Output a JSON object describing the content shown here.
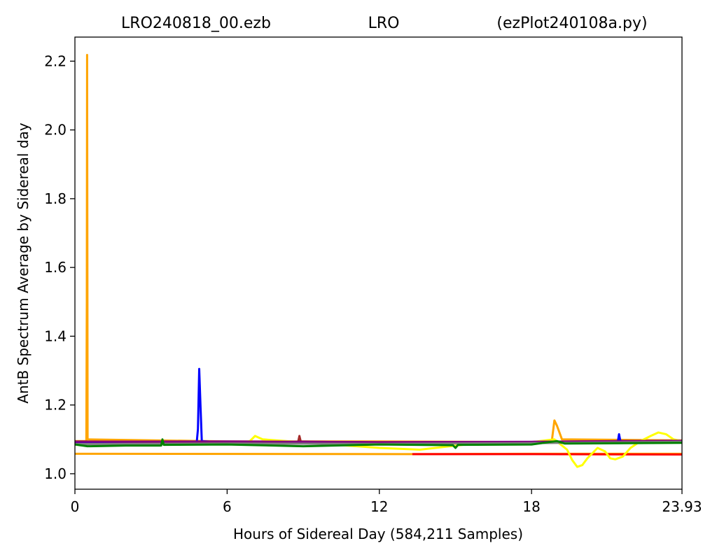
{
  "chart_data": {
    "type": "line",
    "title_parts": [
      "LRO240818_00.ezb",
      "LRO",
      "(ezPlot240108a.py)"
    ],
    "xlabel": "Hours of Sidereal Day  (584,211 Samples)",
    "ylabel": "AntB Spectrum Average by Sidereal day",
    "xlim": [
      0,
      23.93
    ],
    "ylim": [
      0.955,
      2.27
    ],
    "xticks": [
      0,
      6,
      12,
      18,
      23.93
    ],
    "xtick_labels": [
      "0",
      "6",
      "12",
      "18",
      "23.93"
    ],
    "yticks": [
      1.0,
      1.2,
      1.4,
      1.6,
      1.8,
      2.0,
      2.2
    ],
    "ytick_labels": [
      "1.0",
      "1.2",
      "1.4",
      "1.6",
      "1.8",
      "2.0",
      "2.2"
    ],
    "grid": false,
    "series": [
      {
        "color": "#ffa500",
        "points": [
          [
            0,
            1.058
          ],
          [
            13.5,
            1.057
          ],
          [
            18,
            1.058
          ],
          [
            23.93,
            1.058
          ]
        ]
      },
      {
        "color": "#ff0000",
        "points": [
          [
            13.3,
            1.057
          ],
          [
            18,
            1.057
          ],
          [
            23.93,
            1.056
          ]
        ]
      },
      {
        "color": "#ffa500",
        "points": [
          [
            0,
            1.095
          ],
          [
            0.45,
            1.095
          ],
          [
            0.47,
            1.5
          ],
          [
            0.48,
            2.218
          ],
          [
            0.49,
            1.6
          ],
          [
            0.5,
            1.1
          ],
          [
            6,
            1.094
          ],
          [
            12,
            1.094
          ],
          [
            18,
            1.092
          ],
          [
            18.8,
            1.095
          ],
          [
            18.9,
            1.155
          ],
          [
            19.0,
            1.14
          ],
          [
            19.2,
            1.1
          ],
          [
            23.93,
            1.097
          ]
        ]
      },
      {
        "color": "#ffff00",
        "points": [
          [
            0,
            1.09
          ],
          [
            6,
            1.092
          ],
          [
            6.5,
            1.09
          ],
          [
            6.9,
            1.095
          ],
          [
            7.1,
            1.11
          ],
          [
            7.4,
            1.1
          ],
          [
            12,
            1.075
          ],
          [
            13.6,
            1.07
          ],
          [
            16,
            1.09
          ],
          [
            18,
            1.092
          ],
          [
            18.9,
            1.1
          ],
          [
            19.1,
            1.088
          ],
          [
            19.4,
            1.07
          ],
          [
            19.6,
            1.04
          ],
          [
            19.8,
            1.02
          ],
          [
            20,
            1.025
          ],
          [
            20.2,
            1.045
          ],
          [
            20.6,
            1.075
          ],
          [
            20.9,
            1.065
          ],
          [
            21.1,
            1.045
          ],
          [
            21.3,
            1.042
          ],
          [
            21.6,
            1.05
          ],
          [
            21.9,
            1.075
          ],
          [
            22.3,
            1.095
          ],
          [
            22.7,
            1.11
          ],
          [
            23,
            1.12
          ],
          [
            23.3,
            1.115
          ],
          [
            23.6,
            1.1
          ],
          [
            23.93,
            1.095
          ]
        ]
      },
      {
        "color": "#0000ff",
        "points": [
          [
            0,
            1.092
          ],
          [
            1.2,
            1.091
          ],
          [
            4.8,
            1.09
          ],
          [
            4.85,
            1.13
          ],
          [
            4.9,
            1.305
          ],
          [
            4.95,
            1.2
          ],
          [
            5.0,
            1.095
          ],
          [
            6,
            1.09
          ],
          [
            12,
            1.088
          ],
          [
            18,
            1.09
          ],
          [
            21.4,
            1.092
          ],
          [
            21.45,
            1.115
          ],
          [
            21.5,
            1.095
          ],
          [
            23.93,
            1.094
          ]
        ]
      },
      {
        "color": "#a52a2a",
        "points": [
          [
            0,
            1.094
          ],
          [
            2,
            1.093
          ],
          [
            6,
            1.092
          ],
          [
            8.8,
            1.093
          ],
          [
            8.85,
            1.11
          ],
          [
            8.9,
            1.094
          ],
          [
            12,
            1.09
          ],
          [
            18,
            1.09
          ],
          [
            23.93,
            1.092
          ]
        ]
      },
      {
        "color": "#800080",
        "points": [
          [
            0,
            1.093
          ],
          [
            6,
            1.094
          ],
          [
            12,
            1.092
          ],
          [
            18,
            1.093
          ],
          [
            23.93,
            1.096
          ]
        ]
      },
      {
        "color": "#808080",
        "points": [
          [
            0,
            1.086
          ],
          [
            6,
            1.088
          ],
          [
            12,
            1.087
          ],
          [
            18,
            1.089
          ],
          [
            23.93,
            1.093
          ]
        ]
      },
      {
        "color": "#008000",
        "points": [
          [
            0,
            1.085
          ],
          [
            0.5,
            1.08
          ],
          [
            2,
            1.082
          ],
          [
            3.4,
            1.082
          ],
          [
            3.45,
            1.1
          ],
          [
            3.5,
            1.084
          ],
          [
            6,
            1.085
          ],
          [
            9,
            1.08
          ],
          [
            12,
            1.085
          ],
          [
            14.9,
            1.083
          ],
          [
            15,
            1.075
          ],
          [
            15.1,
            1.084
          ],
          [
            18,
            1.085
          ],
          [
            19,
            1.095
          ],
          [
            19.3,
            1.088
          ],
          [
            23.93,
            1.09
          ]
        ]
      }
    ]
  }
}
